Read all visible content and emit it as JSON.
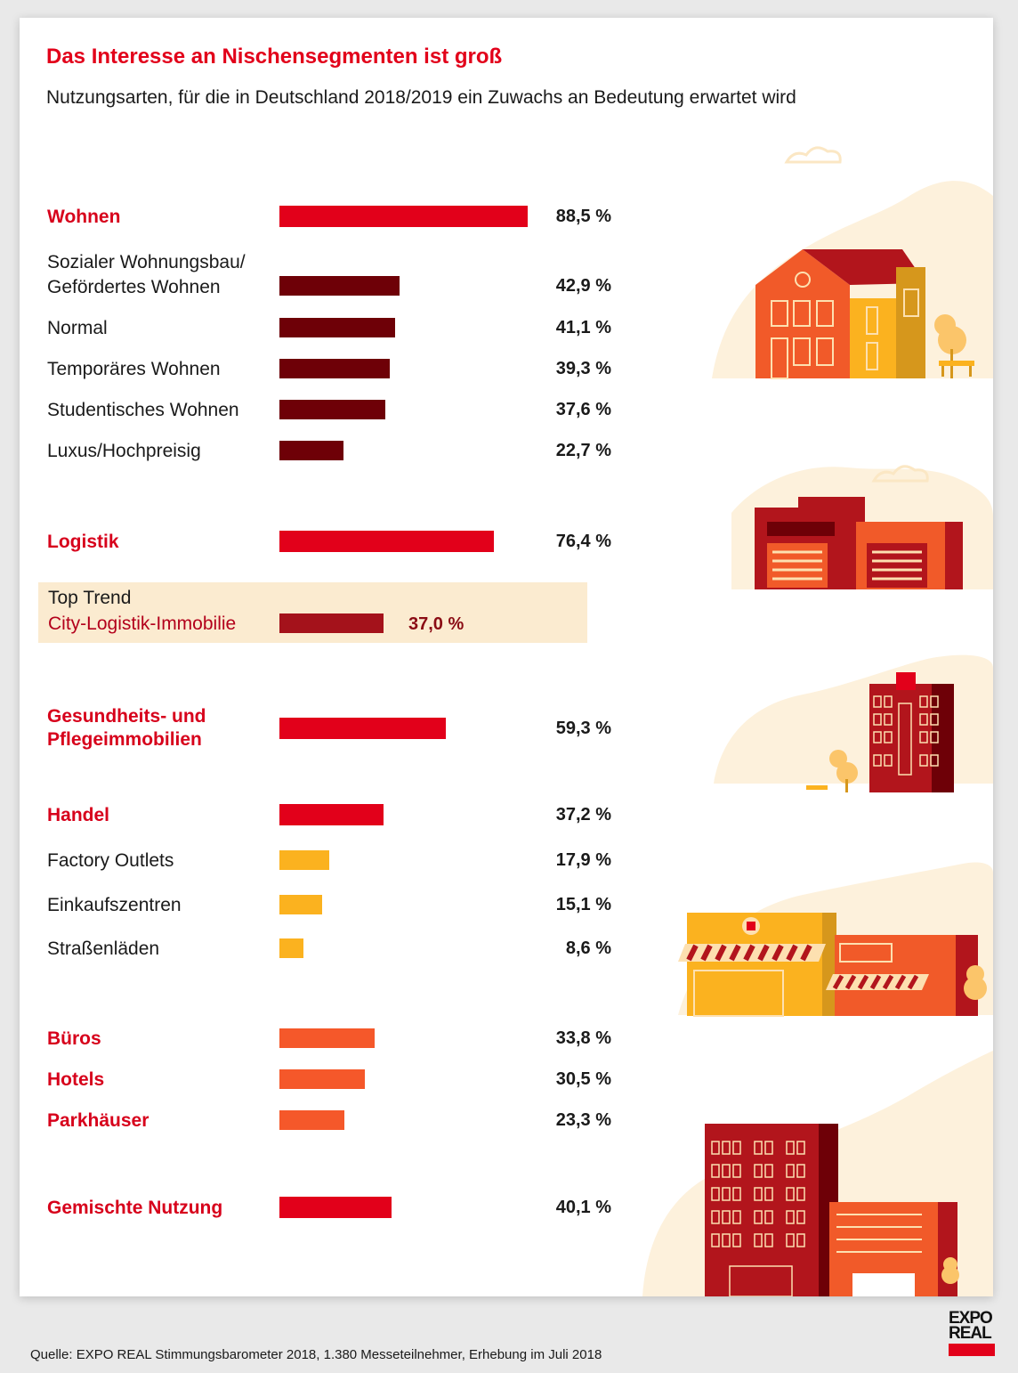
{
  "title": "Das Interesse an Nischensegmenten ist groß",
  "subtitle": "Nutzungsarten, für die in Deutschland 2018/2019 ein Zuwachs an Bedeutung erwartet wird",
  "source": "Quelle: EXPO REAL Stimmungsbarometer 2018, 1.380 Messeteilnehmer, Erhebung im Juli 2018",
  "logo": {
    "line1": "EXPO",
    "line2": "REAL"
  },
  "colors": {
    "category": "#e2001a",
    "wohnen_sub": "#6e0007",
    "trend": "#a4121b",
    "handel_sub": "#fbb21f",
    "orange": "#f5582a"
  },
  "chart_data": {
    "type": "bar",
    "orientation": "horizontal",
    "unit": "%",
    "xlim": [
      0,
      100
    ],
    "rows": [
      {
        "label": "Wohnen",
        "value": 88.5,
        "value_label": "88,5 %",
        "kind": "category"
      },
      {
        "label": "Sozialer Wohnungsbau/\nGefördertes Wohnen",
        "value": 42.9,
        "value_label": "42,9 %",
        "kind": "wohnen_sub"
      },
      {
        "label": "Normal",
        "value": 41.1,
        "value_label": "41,1 %",
        "kind": "wohnen_sub"
      },
      {
        "label": "Temporäres Wohnen",
        "value": 39.3,
        "value_label": "39,3 %",
        "kind": "wohnen_sub"
      },
      {
        "label": "Studentisches Wohnen",
        "value": 37.6,
        "value_label": "37,6 %",
        "kind": "wohnen_sub"
      },
      {
        "label": "Luxus/Hochpreisig",
        "value": 22.7,
        "value_label": "22,7 %",
        "kind": "wohnen_sub"
      },
      {
        "label": "Logistik",
        "value": 76.4,
        "value_label": "76,4 %",
        "kind": "category"
      },
      {
        "label": "Gesundheits- und\nPflegeimmobilien",
        "value": 59.3,
        "value_label": "59,3 %",
        "kind": "category"
      },
      {
        "label": "Handel",
        "value": 37.2,
        "value_label": "37,2 %",
        "kind": "category"
      },
      {
        "label": "Factory Outlets",
        "value": 17.9,
        "value_label": "17,9 %",
        "kind": "handel_sub"
      },
      {
        "label": "Einkaufszentren",
        "value": 15.1,
        "value_label": "15,1 %",
        "kind": "handel_sub"
      },
      {
        "label": "Straßenläden",
        "value": 8.6,
        "value_label": "8,6 %",
        "kind": "handel_sub"
      },
      {
        "label": "Büros",
        "value": 33.8,
        "value_label": "33,8 %",
        "kind": "orange"
      },
      {
        "label": "Hotels",
        "value": 30.5,
        "value_label": "30,5 %",
        "kind": "orange"
      },
      {
        "label": "Parkhäuser",
        "value": 23.3,
        "value_label": "23,3 %",
        "kind": "orange"
      },
      {
        "label": "Gemischte Nutzung",
        "value": 40.1,
        "value_label": "40,1 %",
        "kind": "category"
      }
    ],
    "top_trend": {
      "heading": "Top Trend",
      "label": "City-Logistik-Immobilie",
      "value": 37.0,
      "value_label": "37,0 %"
    }
  }
}
